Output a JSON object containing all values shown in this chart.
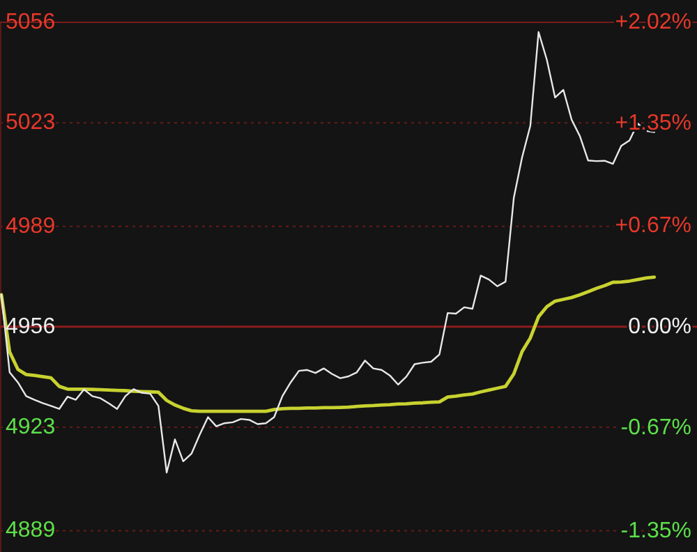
{
  "chart_data": {
    "type": "line",
    "categories": [
      null,
      null,
      null,
      null,
      null,
      null,
      null,
      null,
      null,
      null,
      null,
      null,
      null,
      null,
      null,
      null,
      null,
      null,
      null,
      null,
      null,
      null,
      null,
      null,
      null,
      null,
      null,
      null,
      null,
      null,
      null,
      null,
      null,
      null,
      null,
      null,
      null,
      null,
      null,
      null,
      null,
      null,
      null,
      null,
      null,
      null,
      null,
      null,
      null,
      null,
      null,
      null,
      null,
      null,
      null,
      null,
      null,
      null,
      null,
      null,
      null,
      null,
      null,
      null,
      null,
      null,
      null,
      null,
      null,
      null,
      null,
      null,
      null,
      null,
      null,
      null,
      null,
      null,
      null,
      null,
      null,
      null,
      null,
      null
    ],
    "ylim": [
      4882,
      5056
    ],
    "yticks": [
      4889,
      4923,
      4956,
      4989,
      5023,
      5056
    ],
    "y2lim": [
      -1.49,
      2.02
    ],
    "y2ticks": [
      {
        "value": -1.35,
        "label": "-1.35%"
      },
      {
        "value": -0.67,
        "label": "-0.67%"
      },
      {
        "value": 0,
        "label": "0.00%"
      },
      {
        "value": 0.67,
        "label": "+0.67%"
      },
      {
        "value": 1.35,
        "label": "+1.35%"
      },
      {
        "value": 2.02,
        "label": "+2.02%"
      }
    ],
    "grid": "y",
    "ref_lines": [
      {
        "axis": "y",
        "value": 4956,
        "color": "#8b1c1c"
      }
    ],
    "series": [
      {
        "color": "#e8e8e8",
        "values": [
          4966.5,
          4941,
          4937.7,
          4933.2,
          4932,
          4930.9,
          4930,
          4929,
          4933,
          4932,
          4935.4,
          4933.2,
          4932.5,
          4930.8,
          4929,
          4933.2,
          4935.5,
          4934.3,
          4934,
          4930,
          4908.1,
          4919,
          4911.8,
          4914.3,
          4920.6,
          4926.3,
          4923.3,
          4924.3,
          4924.6,
          4925.7,
          4925.4,
          4924,
          4924.3,
          4926.3,
          4933.2,
          4937.7,
          4941.5,
          4941.8,
          4940.8,
          4942.3,
          4940.5,
          4939.1,
          4939.7,
          4941,
          4944.9,
          4942.3,
          4941.8,
          4940,
          4937,
          4939.6,
          4943.7,
          4944.2,
          4944.5,
          4946.9,
          4960.5,
          4960.3,
          4962.4,
          4961.9,
          4972.8,
          4971.5,
          4969.3,
          4970.8,
          4998.3,
          5011.6,
          5022,
          5052.8,
          5043.7,
          5031.3,
          5033.8,
          5024,
          5018.6,
          5010.6,
          5010.4,
          5010.5,
          5009.5,
          5015.4,
          5017.2,
          5022.8,
          5020.3,
          5019.9,
          null,
          null,
          null,
          null
        ]
      },
      {
        "color": "#c8d230",
        "values": [
          4966.5,
          4947.7,
          4942,
          4940.3,
          4940,
          4939.6,
          4939.2,
          4936.4,
          4935.5,
          4935.5,
          4935.5,
          4935.4,
          4935.3,
          4935.2,
          4935.1,
          4935,
          4934.8,
          4934.7,
          4934.6,
          4934.5,
          4931.8,
          4930.3,
          4929.2,
          4928.4,
          4928.2,
          4928.2,
          4928.2,
          4928.2,
          4928.2,
          4928.2,
          4928.2,
          4928.2,
          4928.2,
          4928.8,
          4929.1,
          4929.2,
          4929.2,
          4929.3,
          4929.3,
          4929.4,
          4929.4,
          4929.5,
          4929.6,
          4929.8,
          4930,
          4930.1,
          4930.3,
          4930.4,
          4930.6,
          4930.7,
          4930.9,
          4931,
          4931.2,
          4931.3,
          4932.9,
          4933.2,
          4933.6,
          4933.9,
          4934.6,
          4935.2,
          4935.8,
          4936.4,
          4940.5,
          4947.8,
          4952.3,
          4959.3,
          4962.6,
          4964.4,
          4965,
          4965.6,
          4966.5,
          4967.5,
          4968.6,
          4969.5,
          4970.6,
          4970.7,
          4971,
          4971.5,
          4972,
          4972.3,
          null,
          null,
          null,
          null
        ]
      }
    ]
  }
}
